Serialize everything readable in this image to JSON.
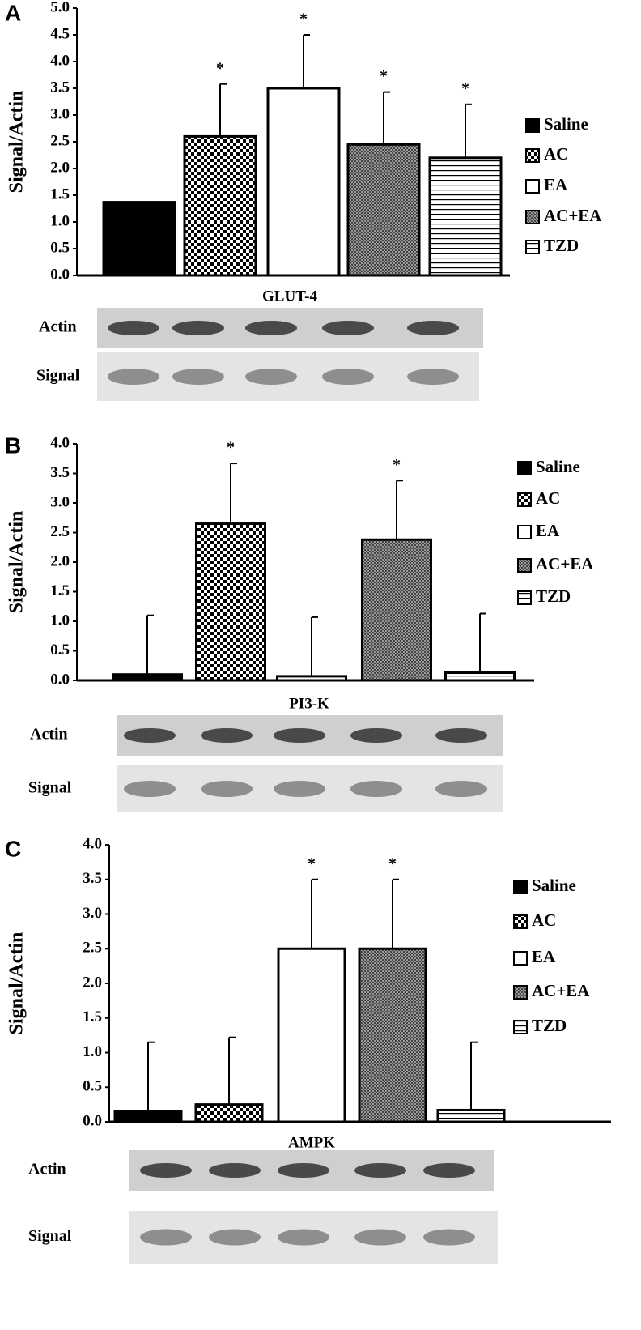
{
  "chart_data": [
    {
      "type": "bar",
      "panel": "A",
      "ylabel": "Signal/Actin",
      "categories": [
        "Saline",
        "AC",
        "EA",
        "AC+EA",
        "TZD"
      ],
      "values": [
        1.37,
        2.6,
        3.5,
        2.45,
        2.2
      ],
      "errors": [
        0,
        0.98,
        1.0,
        0.98,
        1.0
      ],
      "significance": [
        null,
        "*",
        "*",
        "*",
        "*"
      ],
      "patterns": [
        "solid",
        "checker",
        "white",
        "dotted",
        "hlines"
      ],
      "color": "#000000",
      "ylim": [
        0,
        5
      ],
      "yticks": [
        {
          "value": 0,
          "label": "0.0"
        },
        0.5,
        {
          "value": 1,
          "label": "1.0"
        },
        1.5,
        {
          "value": 2,
          "label": "2.0"
        },
        2.5,
        {
          "value": 3,
          "label": "3.0"
        },
        3.5,
        {
          "value": 4,
          "label": "4.0"
        },
        4.5,
        {
          "value": 5,
          "label": "5.0"
        }
      ],
      "legend": "right",
      "blot": {
        "title": "GLUT-4",
        "rows": [
          "Actin",
          "Signal"
        ]
      }
    },
    {
      "type": "bar",
      "panel": "B",
      "ylabel": "Signal/Actin",
      "categories": [
        "Saline",
        "AC",
        "EA",
        "AC+EA",
        "TZD"
      ],
      "values": [
        0.1,
        2.65,
        0.07,
        2.38,
        0.13
      ],
      "errors": [
        1.0,
        1.02,
        1.0,
        1.0,
        1.0
      ],
      "significance": [
        null,
        "*",
        null,
        "*",
        null
      ],
      "patterns": [
        "solid",
        "checker",
        "white",
        "dotted",
        "hlines"
      ],
      "color": "#000000",
      "ylim": [
        0,
        4
      ],
      "yticks": [
        {
          "value": 0,
          "label": "0.0"
        },
        0.5,
        {
          "value": 1,
          "label": "1.0"
        },
        1.5,
        {
          "value": 2,
          "label": "2.0"
        },
        2.5,
        {
          "value": 3,
          "label": "3.0"
        },
        3.5,
        {
          "value": 4,
          "label": "4.0"
        }
      ],
      "legend": "right",
      "blot": {
        "title": "PI3-K",
        "rows": [
          "Actin",
          "Signal"
        ]
      }
    },
    {
      "type": "bar",
      "panel": "C",
      "ylabel": "Signal/Actin",
      "categories": [
        "Saline",
        "AC",
        "EA",
        "AC+EA",
        "TZD"
      ],
      "values": [
        0.15,
        0.25,
        2.5,
        2.5,
        0.17
      ],
      "errors": [
        1.0,
        0.97,
        1.0,
        1.0,
        0.98
      ],
      "significance": [
        null,
        null,
        "*",
        "*",
        null
      ],
      "patterns": [
        "solid",
        "checker",
        "white",
        "dotted",
        "hlines"
      ],
      "color": "#000000",
      "ylim": [
        0,
        4
      ],
      "yticks": [
        {
          "value": 0,
          "label": "0.0"
        },
        0.5,
        {
          "value": 1,
          "label": "1.0"
        },
        1.5,
        {
          "value": 2,
          "label": "2.0"
        },
        2.5,
        {
          "value": 3,
          "label": "3.0"
        },
        3.5,
        {
          "value": 4,
          "label": "4.0"
        }
      ],
      "legend": "right",
      "blot": {
        "title": "AMPK",
        "rows": [
          "Actin",
          "Signal"
        ]
      }
    }
  ]
}
